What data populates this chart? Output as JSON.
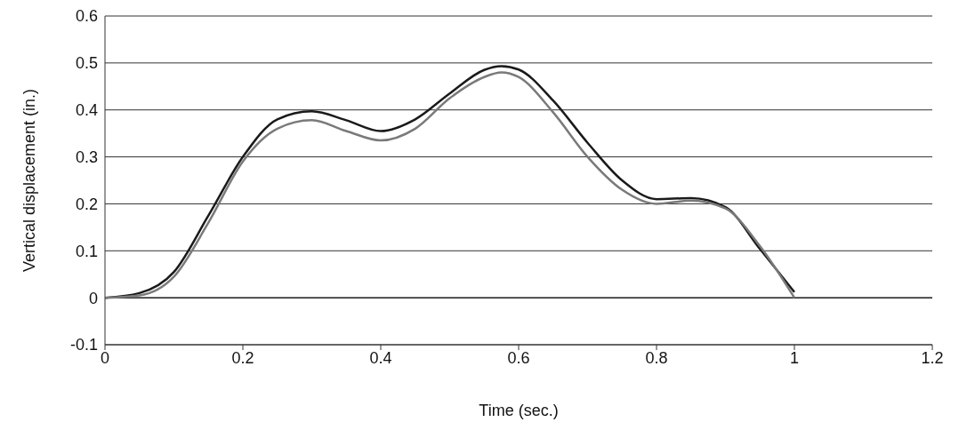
{
  "chart_data": {
    "type": "line",
    "xlabel": "Time (sec.)",
    "ylabel": "Vertical displacement (in.)",
    "xlim": [
      0,
      1.2
    ],
    "xticks": [
      0,
      0.2,
      0.4,
      0.6,
      0.8,
      1,
      1.2
    ],
    "ylim": [
      -0.1,
      0.6
    ],
    "yticks": [
      -0.1,
      0,
      0.1,
      0.2,
      0.3,
      0.4,
      0.5,
      0.6
    ],
    "grid": "y",
    "marker": "none",
    "line_style": "solid",
    "series": [
      {
        "color": "#1a1a1a",
        "x": [
          0,
          0.05,
          0.1,
          0.15,
          0.2,
          0.25,
          0.3,
          0.35,
          0.4,
          0.45,
          0.5,
          0.55,
          0.575,
          0.6,
          0.65,
          0.7,
          0.75,
          0.8,
          0.85,
          0.9,
          0.95,
          1
        ],
        "values": [
          0,
          0.01,
          0.055,
          0.175,
          0.3,
          0.38,
          0.397,
          0.378,
          0.355,
          0.38,
          0.435,
          0.485,
          0.493,
          0.486,
          0.42,
          0.33,
          0.25,
          0.21,
          0.212,
          0.193,
          0.104,
          0.012
        ]
      },
      {
        "color": "#7a7a7a",
        "x": [
          0,
          0.05,
          0.1,
          0.15,
          0.2,
          0.25,
          0.3,
          0.35,
          0.4,
          0.45,
          0.5,
          0.55,
          0.575,
          0.6,
          0.65,
          0.7,
          0.75,
          0.8,
          0.85,
          0.9,
          0.95,
          1
        ],
        "values": [
          0,
          0.005,
          0.045,
          0.16,
          0.29,
          0.36,
          0.378,
          0.355,
          0.335,
          0.36,
          0.425,
          0.47,
          0.48,
          0.47,
          0.395,
          0.3,
          0.23,
          0.2,
          0.207,
          0.19,
          0.11,
          0
        ]
      }
    ]
  }
}
